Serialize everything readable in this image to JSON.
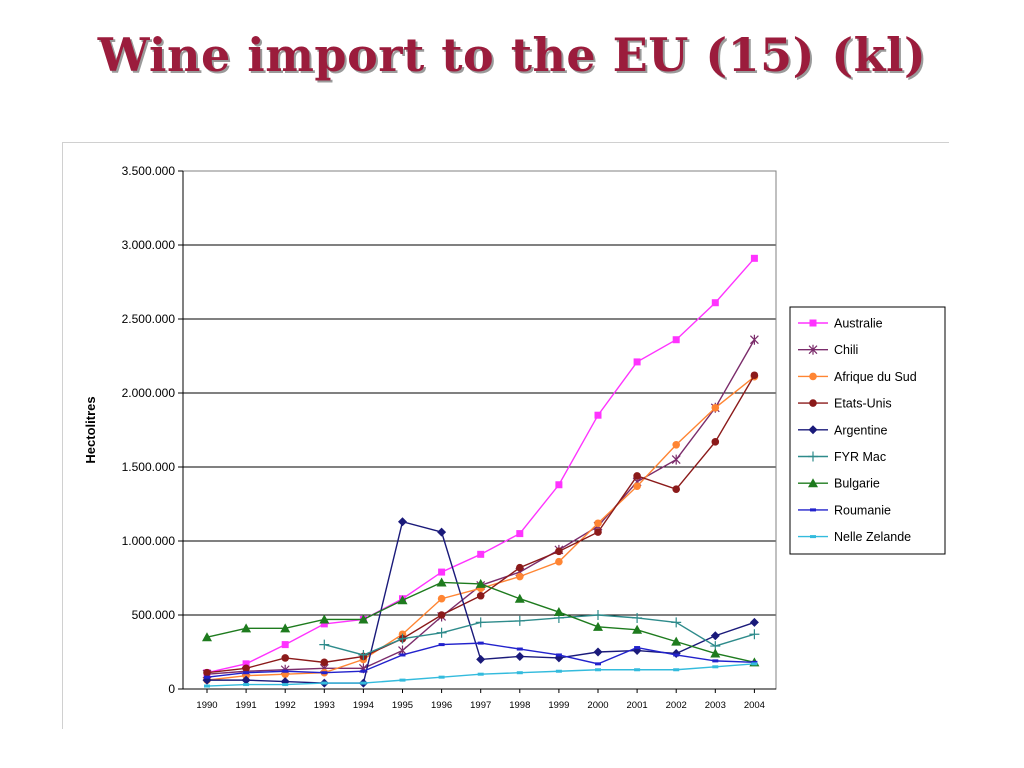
{
  "slide": {
    "title": "Wine import to the EU (15) (kl)"
  },
  "chart_data": {
    "type": "line",
    "title": "",
    "xlabel": "",
    "ylabel": "Hectolitres",
    "x": [
      "1990",
      "1991",
      "1992",
      "1993",
      "1994",
      "1995",
      "1996",
      "1997",
      "1998",
      "1999",
      "2000",
      "2001",
      "2002",
      "2003",
      "2004"
    ],
    "ylim": [
      0,
      3500000
    ],
    "yticks": [
      0,
      500000,
      1000000,
      1500000,
      2000000,
      2500000,
      3000000,
      3500000
    ],
    "ytick_labels": [
      "0",
      "500.000",
      "1.000.000",
      "1.500.000",
      "2.000.000",
      "2.500.000",
      "3.000.000",
      "3.500.000"
    ],
    "grid": "horizontal",
    "legend_position": "right",
    "series": [
      {
        "name": "Australie",
        "color": "#ff33ff",
        "marker": "square",
        "values": [
          110000,
          170000,
          300000,
          440000,
          470000,
          610000,
          790000,
          910000,
          1050000,
          1380000,
          1850000,
          2210000,
          2360000,
          2610000,
          2910000
        ]
      },
      {
        "name": "Chili",
        "color": "#7b2c6b",
        "marker": "star",
        "values": [
          100000,
          120000,
          130000,
          140000,
          140000,
          260000,
          490000,
          700000,
          790000,
          940000,
          1100000,
          1400000,
          1550000,
          1900000,
          2360000
        ]
      },
      {
        "name": "Afrique du Sud",
        "color": "#ff8533",
        "marker": "circle",
        "values": [
          60000,
          90000,
          100000,
          110000,
          200000,
          370000,
          610000,
          680000,
          760000,
          860000,
          1120000,
          1370000,
          1650000,
          1900000,
          2110000
        ]
      },
      {
        "name": "Etats-Unis",
        "color": "#8b1a1a",
        "marker": "circle",
        "values": [
          110000,
          140000,
          210000,
          180000,
          220000,
          340000,
          500000,
          630000,
          820000,
          930000,
          1060000,
          1440000,
          1350000,
          1670000,
          2120000
        ]
      },
      {
        "name": "Argentine",
        "color": "#1a1a7a",
        "marker": "diamond",
        "values": [
          60000,
          60000,
          50000,
          40000,
          40000,
          1130000,
          1060000,
          200000,
          220000,
          210000,
          250000,
          260000,
          240000,
          360000,
          450000
        ]
      },
      {
        "name": "FYR Mac",
        "color": "#2e8b8b",
        "marker": "plus",
        "values": [
          null,
          null,
          null,
          300000,
          230000,
          340000,
          380000,
          450000,
          460000,
          480000,
          500000,
          480000,
          450000,
          290000,
          370000
        ]
      },
      {
        "name": "Bulgarie",
        "color": "#1e7b1e",
        "marker": "triangle",
        "values": [
          350000,
          410000,
          410000,
          470000,
          470000,
          600000,
          720000,
          710000,
          610000,
          520000,
          420000,
          400000,
          320000,
          240000,
          180000
        ]
      },
      {
        "name": "Roumanie",
        "color": "#2222cc",
        "marker": "dash",
        "values": [
          80000,
          110000,
          120000,
          110000,
          120000,
          230000,
          300000,
          310000,
          270000,
          230000,
          170000,
          280000,
          230000,
          190000,
          180000
        ]
      },
      {
        "name": "Nelle Zelande",
        "color": "#33bbdd",
        "marker": "dash",
        "values": [
          20000,
          30000,
          30000,
          40000,
          40000,
          60000,
          80000,
          100000,
          110000,
          120000,
          130000,
          130000,
          130000,
          150000,
          170000
        ]
      }
    ]
  }
}
